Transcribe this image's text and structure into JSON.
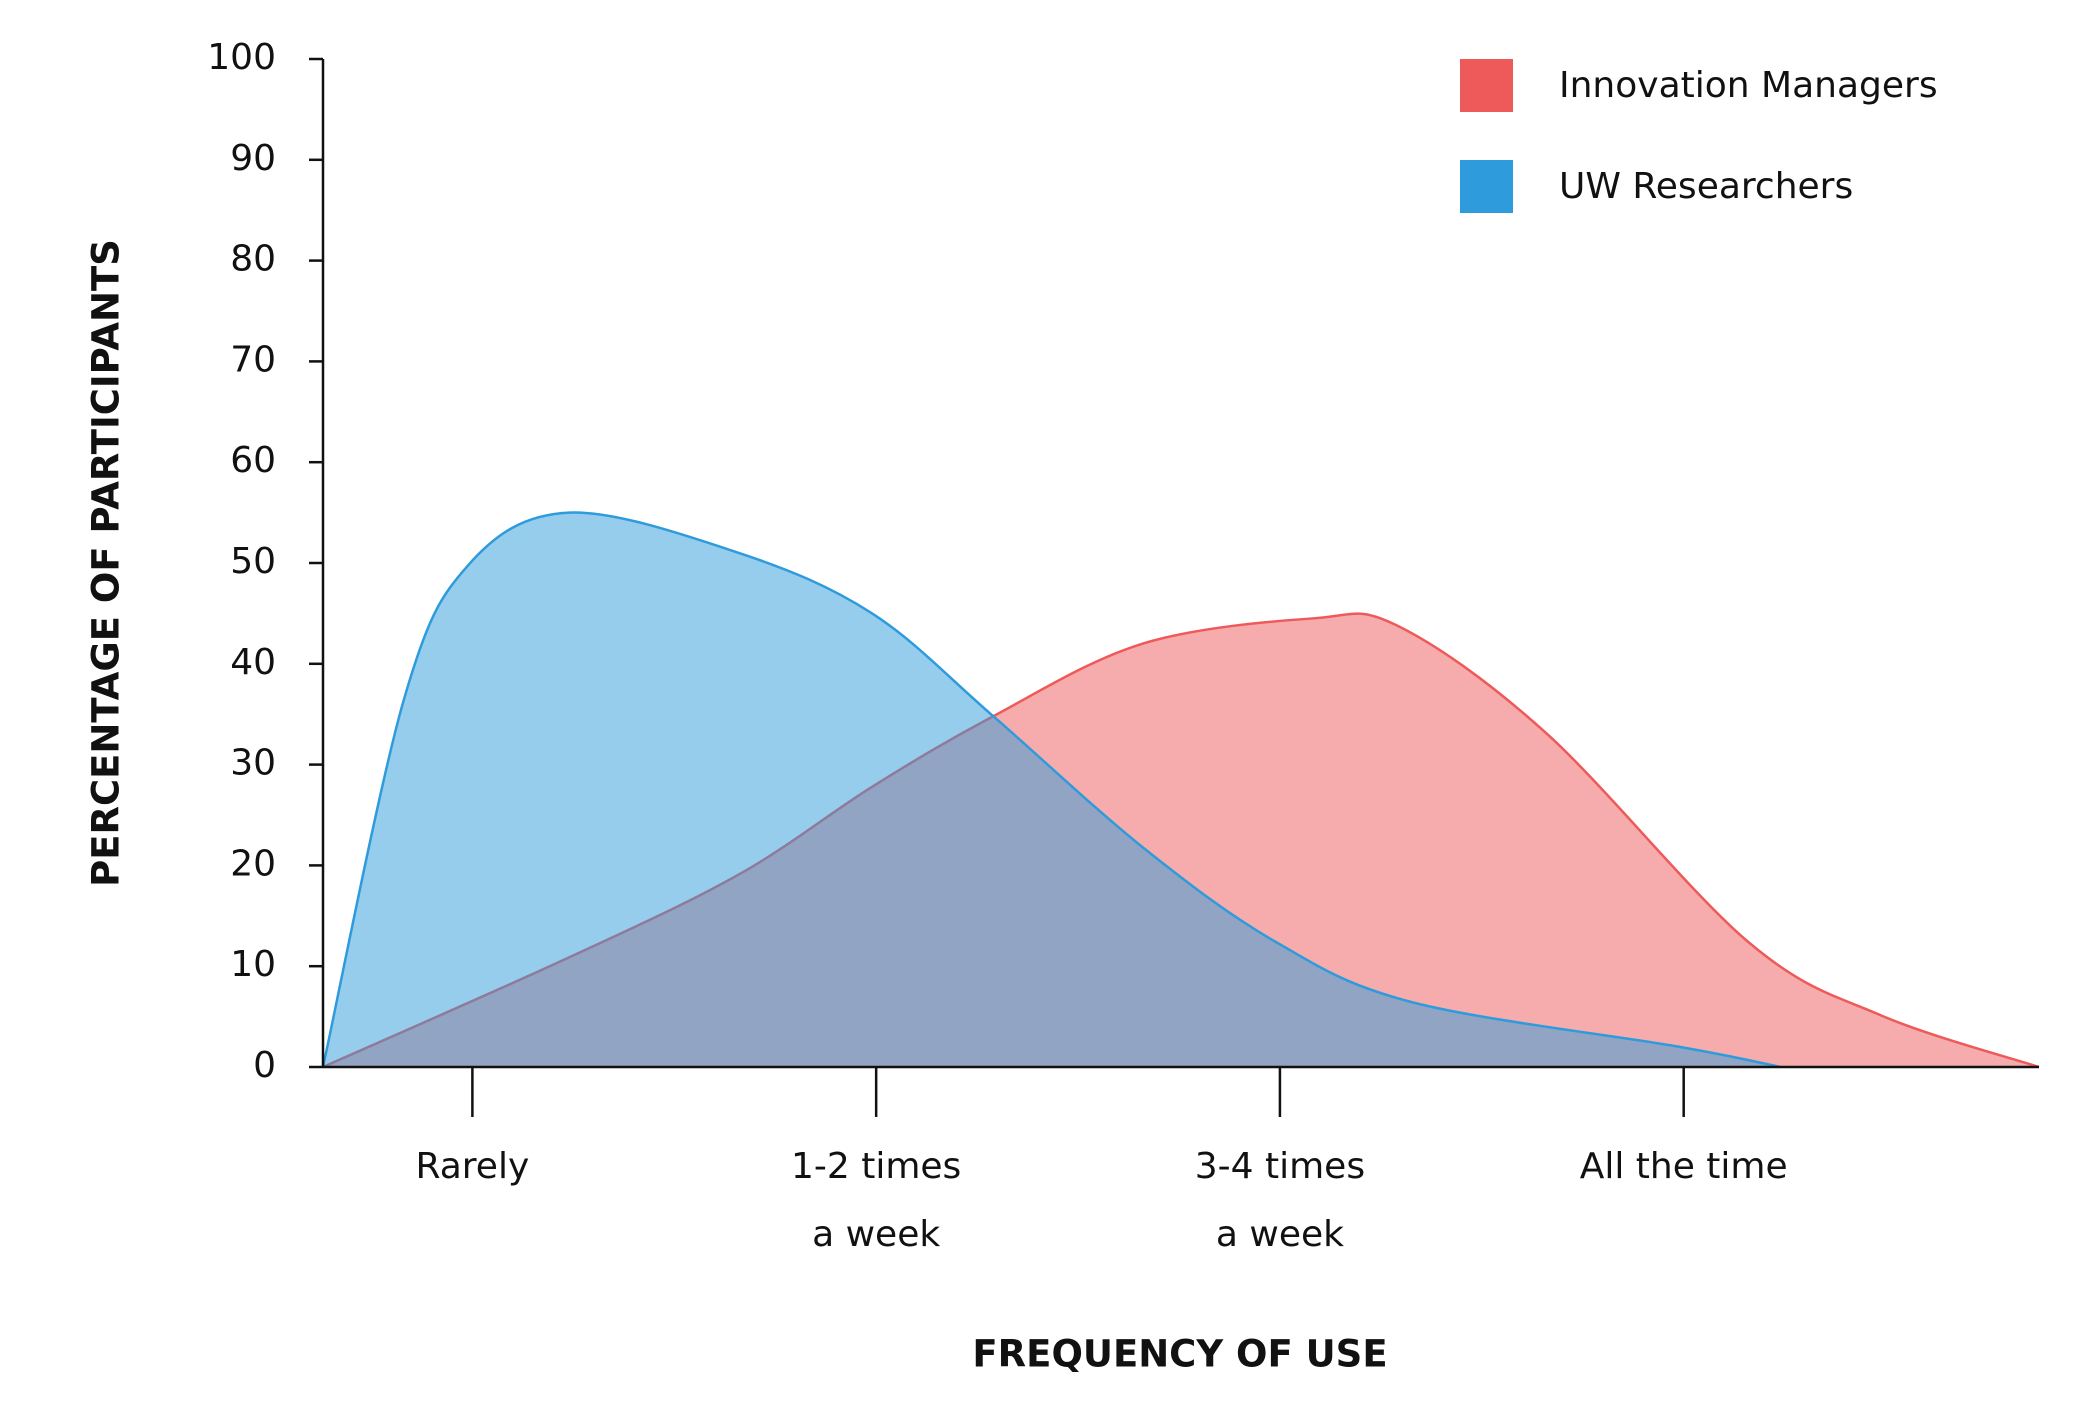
{
  "chart_data": {
    "type": "area",
    "xlabel": "FREQUENCY OF USE",
    "ylabel": "PERCENTAGE OF PARTICIPANTS",
    "xlim": [
      0.63,
      4.88
    ],
    "xticks": [
      {
        "value": 1,
        "label": [
          "Rarely"
        ]
      },
      {
        "value": 2,
        "label": [
          "1-2 times",
          "a week"
        ]
      },
      {
        "value": 3,
        "label": [
          "3-4 times",
          "a week"
        ]
      },
      {
        "value": 4,
        "label": [
          "All the time"
        ]
      }
    ],
    "ylim": [
      0,
      100
    ],
    "yticks": [
      0,
      10,
      20,
      30,
      40,
      50,
      60,
      70,
      80,
      90,
      100
    ],
    "legend": "top-right",
    "series": [
      {
        "name": "Innovation Managers",
        "color": "#ee5a5a",
        "x": [
          0.63,
          1.23,
          1.66,
          1.99,
          2.29,
          2.66,
          3.08,
          3.29,
          3.66,
          4.16,
          4.49,
          4.88
        ],
        "values": [
          0,
          10.7,
          19.1,
          27.8,
          34.8,
          42,
          44.5,
          43.8,
          33.1,
          12.4,
          5.1,
          0
        ]
      },
      {
        "name": "UW Researchers",
        "color": "#2e9bdc",
        "x": [
          0.63,
          0.83,
          0.99,
          1.24,
          1.66,
          1.99,
          2.29,
          2.66,
          2.99,
          3.33,
          3.99,
          4.24
        ],
        "values": [
          0,
          36.4,
          49.8,
          55,
          51,
          45,
          34.8,
          21.8,
          12.4,
          6.4,
          2,
          0
        ]
      }
    ]
  }
}
